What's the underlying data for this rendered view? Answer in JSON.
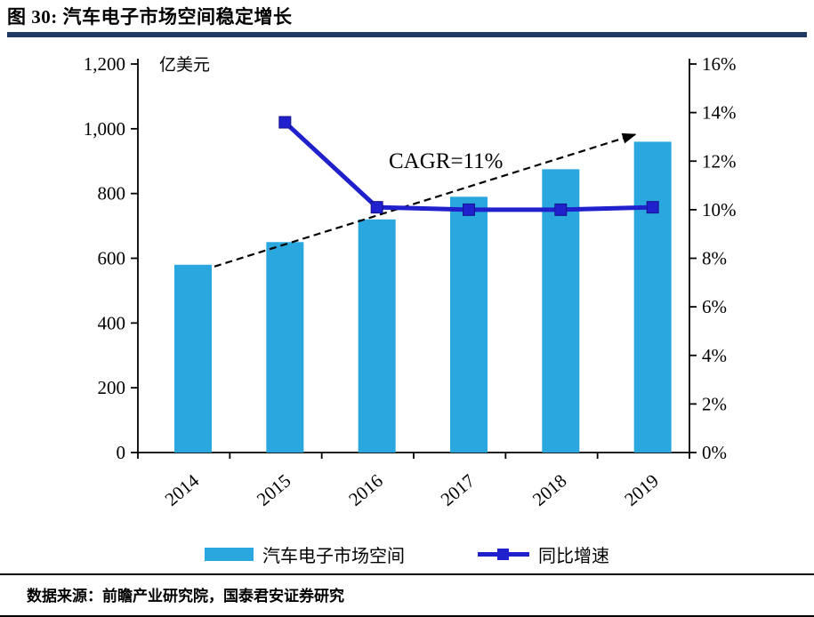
{
  "header": {
    "title": "图 30:  汽车电子市场空间稳定增长",
    "rule_color": "#1F3864"
  },
  "chart_data": {
    "type": "bar+line combo",
    "title": "汽车电子市场空间稳定增长",
    "categories": [
      "2014",
      "2015",
      "2016",
      "2017",
      "2018",
      "2019"
    ],
    "series": [
      {
        "name": "汽车电子市场空间",
        "type": "bar",
        "axis": "left",
        "color": "#2BA7DF",
        "values": [
          580,
          650,
          720,
          790,
          875,
          960
        ]
      },
      {
        "name": "同比增速",
        "type": "line",
        "axis": "right",
        "color": "#2020CD",
        "values": [
          null,
          13.6,
          10.1,
          10.0,
          10.0,
          10.1
        ]
      }
    ],
    "left_axis": {
      "label": "亿美元",
      "min": 0,
      "max": 1200,
      "step": 200,
      "ticks": [
        "0",
        "200",
        "400",
        "600",
        "800",
        "1,000",
        "1,200"
      ]
    },
    "right_axis": {
      "min": 0,
      "max": 16,
      "step": 2,
      "ticks": [
        "0%",
        "2%",
        "4%",
        "6%",
        "8%",
        "10%",
        "12%",
        "14%",
        "16%"
      ]
    },
    "annotation": {
      "text": "CAGR=11%",
      "style": "dashed-arrow"
    },
    "legend": [
      {
        "label": "汽车电子市场空间",
        "swatch": "bar"
      },
      {
        "label": "同比增速",
        "swatch": "line-with-square-marker"
      }
    ],
    "grid": false,
    "legend_position": "bottom-center"
  },
  "footer": {
    "source": "数据来源：前瞻产业研究院，国泰君安证券研究"
  }
}
